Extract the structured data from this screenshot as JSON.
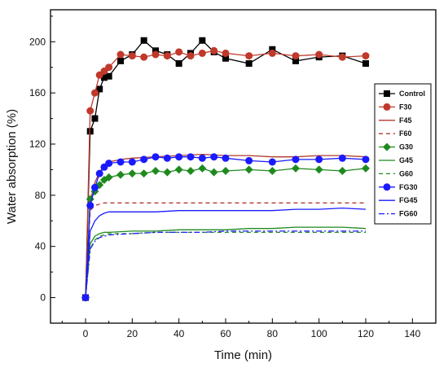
{
  "chart_data": {
    "type": "line",
    "xlabel": "Time (min)",
    "ylabel": "Water absorption (%)",
    "xlim": [
      -15,
      150
    ],
    "ylim": [
      -20,
      225
    ],
    "x_ticks": [
      0,
      20,
      40,
      60,
      80,
      100,
      120,
      140
    ],
    "y_ticks": [
      0,
      40,
      80,
      120,
      160,
      200
    ],
    "grid": false,
    "legend_position": "right",
    "series": [
      {
        "name": "Control",
        "color": "#000000",
        "marker": "square",
        "dash": "solid",
        "x": [
          0,
          2,
          4,
          6,
          8,
          10,
          15,
          20,
          25,
          30,
          35,
          40,
          45,
          50,
          55,
          60,
          70,
          80,
          90,
          100,
          110,
          120
        ],
        "y": [
          0,
          130,
          140,
          163,
          172,
          173,
          185,
          190,
          201,
          193,
          190,
          183,
          191,
          201,
          192,
          187,
          183,
          194,
          185,
          188,
          189,
          183
        ]
      },
      {
        "name": "F30",
        "color": "#c0392b",
        "marker": "circle",
        "dash": "solid",
        "x": [
          0,
          2,
          4,
          6,
          8,
          10,
          15,
          20,
          25,
          30,
          35,
          40,
          45,
          50,
          55,
          60,
          70,
          80,
          90,
          100,
          110,
          120
        ],
        "y": [
          0,
          146,
          160,
          174,
          177,
          180,
          190,
          189,
          188,
          190,
          189,
          192,
          189,
          191,
          193,
          191,
          189,
          191,
          189,
          190,
          188,
          189
        ]
      },
      {
        "name": "F45",
        "color": "#b03a2e",
        "marker": "none",
        "dash": "solid",
        "x": [
          0,
          2,
          4,
          6,
          8,
          10,
          15,
          20,
          30,
          40,
          50,
          60,
          70,
          80,
          90,
          100,
          110,
          120
        ],
        "y": [
          0,
          75,
          90,
          98,
          103,
          106,
          108,
          109,
          110,
          111,
          112,
          111,
          111,
          110,
          110,
          111,
          111,
          110
        ]
      },
      {
        "name": "F60",
        "color": "#b03a2e",
        "marker": "none",
        "dash": "dash",
        "x": [
          0,
          2,
          4,
          6,
          8,
          10,
          20,
          30,
          40,
          50,
          60,
          70,
          80,
          90,
          100,
          110,
          120
        ],
        "y": [
          0,
          68,
          72,
          73,
          74,
          74,
          74,
          74,
          74,
          74,
          74,
          74,
          74,
          74,
          74,
          74,
          74
        ]
      },
      {
        "name": "G30",
        "color": "#1e8a1e",
        "marker": "diamond",
        "dash": "solid",
        "x": [
          0,
          2,
          4,
          6,
          8,
          10,
          15,
          20,
          25,
          30,
          35,
          40,
          45,
          50,
          55,
          60,
          70,
          80,
          90,
          100,
          110,
          120
        ],
        "y": [
          0,
          77,
          83,
          88,
          92,
          94,
          96,
          97,
          97,
          99,
          98,
          100,
          99,
          101,
          98,
          99,
          100,
          99,
          101,
          100,
          99,
          101
        ]
      },
      {
        "name": "G45",
        "color": "#1e8a1e",
        "marker": "none",
        "dash": "solid",
        "x": [
          0,
          2,
          4,
          6,
          8,
          10,
          20,
          30,
          40,
          50,
          60,
          70,
          80,
          90,
          100,
          110,
          120
        ],
        "y": [
          0,
          42,
          48,
          50,
          51,
          51,
          52,
          52,
          53,
          53,
          53,
          54,
          54,
          55,
          55,
          55,
          54
        ]
      },
      {
        "name": "G60",
        "color": "#1e8a1e",
        "marker": "none",
        "dash": "dash",
        "x": [
          0,
          2,
          4,
          6,
          8,
          10,
          20,
          30,
          40,
          50,
          60,
          70,
          80,
          90,
          100,
          110,
          120
        ],
        "y": [
          0,
          38,
          45,
          48,
          49,
          50,
          50,
          51,
          51,
          51,
          51,
          51,
          51,
          51,
          51,
          51,
          51
        ]
      },
      {
        "name": "FG30",
        "color": "#1a1aff",
        "marker": "circle",
        "dash": "solid",
        "x": [
          0,
          2,
          4,
          6,
          8,
          10,
          15,
          20,
          25,
          30,
          35,
          40,
          45,
          50,
          55,
          60,
          70,
          80,
          90,
          100,
          110,
          120
        ],
        "y": [
          0,
          72,
          86,
          97,
          102,
          105,
          106,
          106,
          108,
          110,
          109,
          110,
          110,
          109,
          110,
          109,
          107,
          106,
          108,
          108,
          109,
          108
        ]
      },
      {
        "name": "FG45",
        "color": "#1a1aff",
        "marker": "none",
        "dash": "solid",
        "x": [
          0,
          2,
          4,
          6,
          8,
          10,
          20,
          30,
          40,
          50,
          60,
          70,
          80,
          90,
          100,
          110,
          120
        ],
        "y": [
          0,
          52,
          60,
          64,
          66,
          67,
          67,
          67,
          68,
          68,
          68,
          68,
          68,
          69,
          69,
          70,
          69
        ]
      },
      {
        "name": "FG60",
        "color": "#1a1aff",
        "marker": "none",
        "dash": "dashdot",
        "x": [
          0,
          2,
          4,
          6,
          8,
          10,
          20,
          30,
          40,
          50,
          60,
          70,
          80,
          90,
          100,
          110,
          120
        ],
        "y": [
          0,
          38,
          44,
          47,
          48,
          49,
          50,
          51,
          51,
          51,
          52,
          52,
          52,
          52,
          52,
          52,
          52
        ]
      }
    ]
  }
}
